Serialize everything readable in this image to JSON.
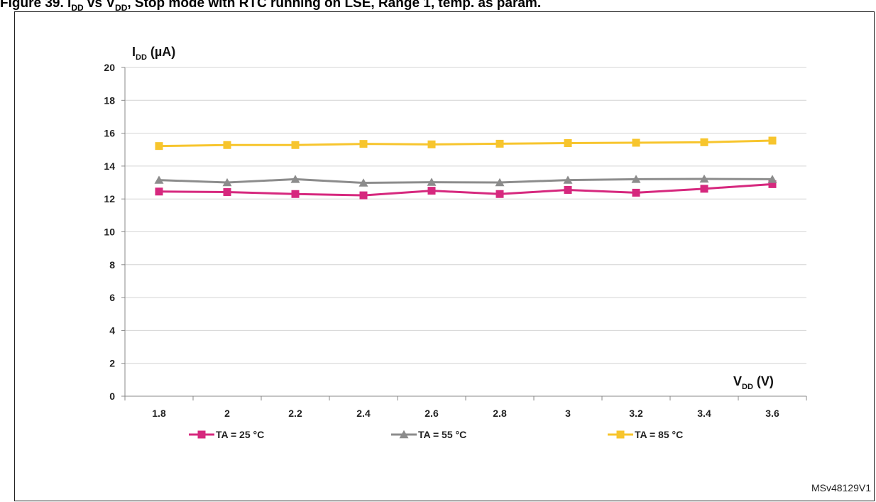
{
  "title": "Figure 39. Iₓₓ vs Vₓₓ, Stop mode with RTC running on LSE, Range 1, temp. as param.",
  "figure_id": "MSv48129V1",
  "chart_data": {
    "type": "line",
    "ylabel": {
      "main": "I",
      "sub": "DD",
      "unit": " (µA)"
    },
    "xlabel": {
      "main": "V",
      "sub": "DD",
      "unit": " (V)"
    },
    "ylim": [
      0,
      20
    ],
    "yticks": [
      0,
      2,
      4,
      6,
      8,
      10,
      12,
      14,
      16,
      18,
      20
    ],
    "categories": [
      "1.8",
      "2",
      "2.2",
      "2.4",
      "2.6",
      "2.8",
      "3",
      "3.2",
      "3.4",
      "3.6"
    ],
    "grid": true,
    "legend_position": "bottom",
    "series": [
      {
        "name": "TA = 25 °C",
        "marker": "square",
        "color": "#d6287e",
        "values": [
          12.45,
          12.42,
          12.3,
          12.22,
          12.5,
          12.3,
          12.55,
          12.38,
          12.62,
          12.9
        ]
      },
      {
        "name": "TA = 55 °C",
        "marker": "triangle",
        "color": "#8c8c8c",
        "values": [
          13.15,
          13.0,
          13.2,
          12.98,
          13.02,
          13.0,
          13.15,
          13.2,
          13.22,
          13.2
        ]
      },
      {
        "name": "TA = 85 °C",
        "marker": "square",
        "color": "#f7c52d",
        "values": [
          15.22,
          15.28,
          15.28,
          15.35,
          15.32,
          15.36,
          15.4,
          15.42,
          15.45,
          15.55
        ]
      }
    ]
  }
}
